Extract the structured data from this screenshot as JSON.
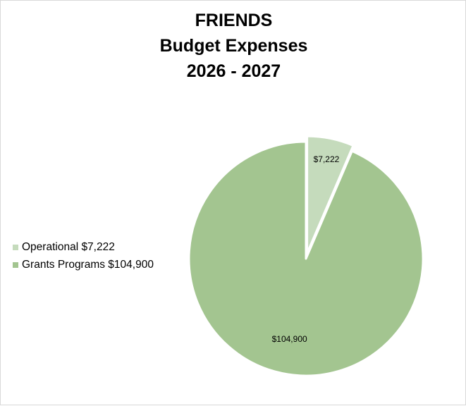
{
  "chart_data": {
    "type": "pie",
    "title_lines": [
      "FRIENDS",
      "Budget Expenses",
      "2026 - 2027"
    ],
    "slices": [
      {
        "name": "Operational",
        "value": 7222,
        "label": "$7,222",
        "legend_label": "Operational $7,222",
        "color": "#c5dbbc",
        "exploded": true
      },
      {
        "name": "Grants Programs",
        "value": 104900,
        "label": "$104,900",
        "legend_label": "Grants Programs $104,900",
        "color": "#a3c590",
        "exploded": false
      }
    ],
    "legend_position": "left"
  }
}
